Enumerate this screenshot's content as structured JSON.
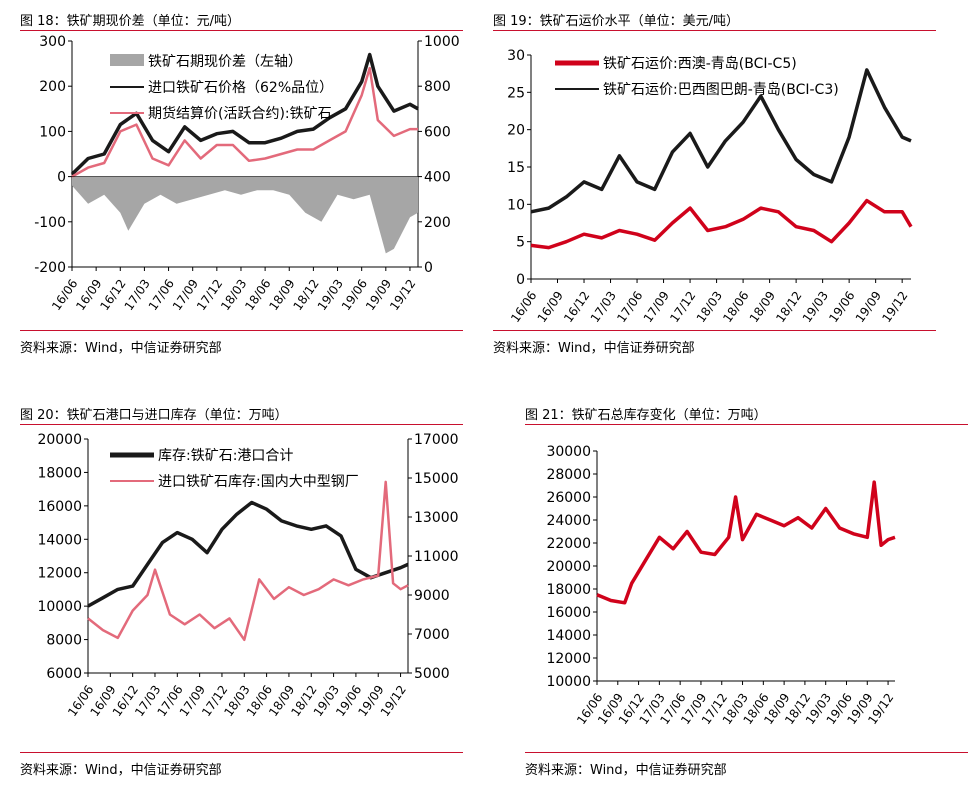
{
  "source_text": "资料来源：Wind，中信证券研究部",
  "chart_data": [
    {
      "id": "c18",
      "type": "line",
      "title": "图 18：铁矿期现价差（单位：元/吨）",
      "x_ticks": [
        "16/06",
        "16/09",
        "16/12",
        "17/03",
        "17/06",
        "17/09",
        "17/12",
        "18/03",
        "18/06",
        "18/09",
        "18/12",
        "19/03",
        "19/06",
        "19/09",
        "19/12"
      ],
      "left_axis": {
        "ticks": [
          "300",
          "200",
          "100",
          "0",
          "-100",
          "-200"
        ],
        "ylim": [
          -200,
          300
        ]
      },
      "right_axis": {
        "ticks": [
          "1000",
          "800",
          "600",
          "400",
          "200",
          "0"
        ],
        "ylim": [
          0,
          1000
        ]
      },
      "legend": [
        "铁矿石期现价差（左轴）",
        "进口铁矿石价格（62%品位）",
        "期货结算价(活跃合约):铁矿石"
      ],
      "series": [
        {
          "name": "铁矿石期现价差（左轴）",
          "type": "area",
          "axis": "left",
          "color": "#a6a6a6",
          "x": [
            "16/06",
            "16/08",
            "16/10",
            "16/12",
            "17/01",
            "17/03",
            "17/05",
            "17/07",
            "17/09",
            "17/11",
            "18/01",
            "18/03",
            "18/05",
            "18/07",
            "18/09",
            "18/11",
            "19/01",
            "19/03",
            "19/05",
            "19/07",
            "19/09",
            "19/10",
            "19/12",
            "20/01"
          ],
          "values": [
            -20,
            -60,
            -40,
            -80,
            -120,
            -60,
            -40,
            -60,
            -50,
            -40,
            -30,
            -40,
            -30,
            -30,
            -40,
            -80,
            -100,
            -40,
            -50,
            -40,
            -170,
            -160,
            -90,
            -80
          ]
        },
        {
          "name": "进口铁矿石价格（62%品位）",
          "type": "line",
          "axis": "right",
          "color": "#1a1a1a",
          "x": [
            "16/06",
            "16/08",
            "16/10",
            "16/12",
            "17/02",
            "17/04",
            "17/06",
            "17/08",
            "17/10",
            "17/12",
            "18/02",
            "18/04",
            "18/06",
            "18/08",
            "18/10",
            "18/12",
            "19/02",
            "19/04",
            "19/06",
            "19/07",
            "19/08",
            "19/10",
            "19/12",
            "20/01"
          ],
          "values": [
            410,
            480,
            500,
            630,
            680,
            560,
            510,
            620,
            560,
            590,
            600,
            550,
            550,
            570,
            600,
            610,
            660,
            700,
            820,
            940,
            800,
            690,
            720,
            700
          ]
        },
        {
          "name": "期货结算价(活跃合约):铁矿石",
          "type": "line",
          "axis": "right",
          "color": "#e36a7b",
          "x": [
            "16/06",
            "16/08",
            "16/10",
            "16/12",
            "17/02",
            "17/04",
            "17/06",
            "17/08",
            "17/10",
            "17/12",
            "18/02",
            "18/04",
            "18/06",
            "18/08",
            "18/10",
            "18/12",
            "19/02",
            "19/04",
            "19/06",
            "19/07",
            "19/08",
            "19/10",
            "19/12",
            "20/01"
          ],
          "values": [
            400,
            440,
            460,
            600,
            630,
            480,
            450,
            560,
            480,
            540,
            540,
            470,
            480,
            500,
            520,
            520,
            560,
            600,
            760,
            880,
            650,
            580,
            610,
            610
          ]
        }
      ]
    },
    {
      "id": "c19",
      "type": "line",
      "title": "图 19：铁矿石运价水平（单位：美元/吨）",
      "x_ticks": [
        "16/06",
        "16/09",
        "16/12",
        "17/03",
        "17/06",
        "17/09",
        "17/12",
        "18/03",
        "18/06",
        "18/09",
        "18/12",
        "19/03",
        "19/06",
        "19/09",
        "19/12"
      ],
      "left_axis": {
        "ticks": [
          "30",
          "25",
          "20",
          "15",
          "10",
          "5",
          "0"
        ],
        "ylim": [
          0,
          30
        ]
      },
      "legend": [
        "铁矿石运价:西澳-青岛(BCI-C5)",
        "铁矿石运价:巴西图巴朗-青岛(BCI-C3)"
      ],
      "series": [
        {
          "name": "铁矿石运价:西澳-青岛(BCI-C5)",
          "type": "line",
          "axis": "left",
          "color": "#d0021b",
          "x": [
            "16/06",
            "16/08",
            "16/10",
            "16/12",
            "17/02",
            "17/04",
            "17/06",
            "17/08",
            "17/10",
            "17/12",
            "18/02",
            "18/04",
            "18/06",
            "18/08",
            "18/10",
            "18/12",
            "19/02",
            "19/04",
            "19/06",
            "19/08",
            "19/10",
            "19/12",
            "20/01"
          ],
          "values": [
            4.5,
            4.2,
            5.0,
            6.0,
            5.5,
            6.5,
            6.0,
            5.2,
            7.5,
            9.5,
            6.5,
            7.0,
            8.0,
            9.5,
            9.0,
            7.0,
            6.5,
            5.0,
            7.5,
            10.5,
            9.0,
            9.0,
            7.0
          ]
        },
        {
          "name": "铁矿石运价:巴西图巴朗-青岛(BCI-C3)",
          "type": "line",
          "axis": "left",
          "color": "#1a1a1a",
          "x": [
            "16/06",
            "16/08",
            "16/10",
            "16/12",
            "17/02",
            "17/04",
            "17/06",
            "17/08",
            "17/10",
            "17/12",
            "18/02",
            "18/04",
            "18/06",
            "18/08",
            "18/10",
            "18/12",
            "19/02",
            "19/04",
            "19/06",
            "19/08",
            "19/10",
            "19/12",
            "20/01"
          ],
          "values": [
            9.0,
            9.5,
            11.0,
            13.0,
            12.0,
            16.5,
            13.0,
            12.0,
            17.0,
            19.5,
            15.0,
            18.5,
            21.0,
            24.5,
            20.0,
            16.0,
            14.0,
            13.0,
            19.0,
            28.0,
            23.0,
            19.0,
            18.5
          ]
        }
      ]
    },
    {
      "id": "c20",
      "type": "line",
      "title": "图 20：铁矿石港口与进口库存（单位：万吨）",
      "x_ticks": [
        "16/06",
        "16/09",
        "16/12",
        "17/03",
        "17/06",
        "17/09",
        "17/12",
        "18/03",
        "18/06",
        "18/09",
        "18/12",
        "19/03",
        "19/06",
        "19/09",
        "19/12"
      ],
      "left_axis": {
        "ticks": [
          "20000",
          "18000",
          "16000",
          "14000",
          "12000",
          "10000",
          "8000",
          "6000"
        ],
        "ylim": [
          6000,
          20000
        ]
      },
      "right_axis": {
        "ticks": [
          "17000",
          "15000",
          "13000",
          "11000",
          "9000",
          "7000",
          "5000"
        ],
        "ylim": [
          5000,
          17000
        ]
      },
      "legend": [
        "库存:铁矿石:港口合计",
        "进口铁矿石库存:国内大中型钢厂"
      ],
      "series": [
        {
          "name": "库存:铁矿石:港口合计",
          "type": "line",
          "axis": "left",
          "color": "#1a1a1a",
          "x": [
            "16/06",
            "16/08",
            "16/10",
            "16/12",
            "17/02",
            "17/04",
            "17/06",
            "17/08",
            "17/10",
            "17/12",
            "18/02",
            "18/04",
            "18/06",
            "18/08",
            "18/10",
            "18/12",
            "19/02",
            "19/04",
            "19/06",
            "19/08",
            "19/10",
            "19/12",
            "20/01"
          ],
          "values": [
            10000,
            10500,
            11000,
            11200,
            12500,
            13800,
            14400,
            14000,
            13200,
            14600,
            15500,
            16200,
            15800,
            15100,
            14800,
            14600,
            14800,
            14200,
            12200,
            11700,
            12000,
            12300,
            12500
          ]
        },
        {
          "name": "进口铁矿石库存:国内大中型钢厂",
          "type": "line",
          "axis": "right",
          "color": "#e36a7b",
          "x": [
            "16/06",
            "16/08",
            "16/10",
            "16/12",
            "17/02",
            "17/03",
            "17/05",
            "17/07",
            "17/09",
            "17/11",
            "18/01",
            "18/03",
            "18/05",
            "18/07",
            "18/09",
            "18/11",
            "19/01",
            "19/03",
            "19/05",
            "19/07",
            "19/09",
            "19/10",
            "19/11",
            "19/12",
            "20/01"
          ],
          "values": [
            7800,
            7200,
            6800,
            8200,
            9000,
            10300,
            8000,
            7500,
            8000,
            7300,
            7800,
            6700,
            9800,
            8800,
            9400,
            9000,
            9300,
            9800,
            9500,
            9800,
            10000,
            14800,
            9600,
            9300,
            9500
          ]
        }
      ]
    },
    {
      "id": "c21",
      "type": "line",
      "title": "图 21：铁矿石总库存变化（单位：万吨）",
      "x_ticks": [
        "16/06",
        "16/09",
        "16/12",
        "17/03",
        "17/06",
        "17/09",
        "17/12",
        "18/03",
        "18/06",
        "18/09",
        "18/12",
        "19/03",
        "19/06",
        "19/09",
        "19/12"
      ],
      "left_axis": {
        "ticks": [
          "30000",
          "28000",
          "26000",
          "24000",
          "22000",
          "20000",
          "18000",
          "16000",
          "14000",
          "12000",
          "10000"
        ],
        "ylim": [
          10000,
          30000
        ]
      },
      "series": [
        {
          "name": "",
          "type": "line",
          "axis": "left",
          "color": "#d0021b",
          "x": [
            "16/06",
            "16/08",
            "16/10",
            "16/11",
            "17/01",
            "17/03",
            "17/05",
            "17/07",
            "17/09",
            "17/11",
            "18/01",
            "18/02",
            "18/03",
            "18/05",
            "18/07",
            "18/09",
            "18/11",
            "19/01",
            "19/03",
            "19/05",
            "19/07",
            "19/09",
            "19/10",
            "19/11",
            "19/12",
            "20/01"
          ],
          "values": [
            17500,
            17000,
            16800,
            18500,
            20500,
            22500,
            21500,
            23000,
            21200,
            21000,
            22500,
            26000,
            22300,
            24500,
            24000,
            23500,
            24200,
            23300,
            25000,
            23300,
            22800,
            22500,
            27300,
            21800,
            22300,
            22500
          ]
        }
      ]
    }
  ]
}
